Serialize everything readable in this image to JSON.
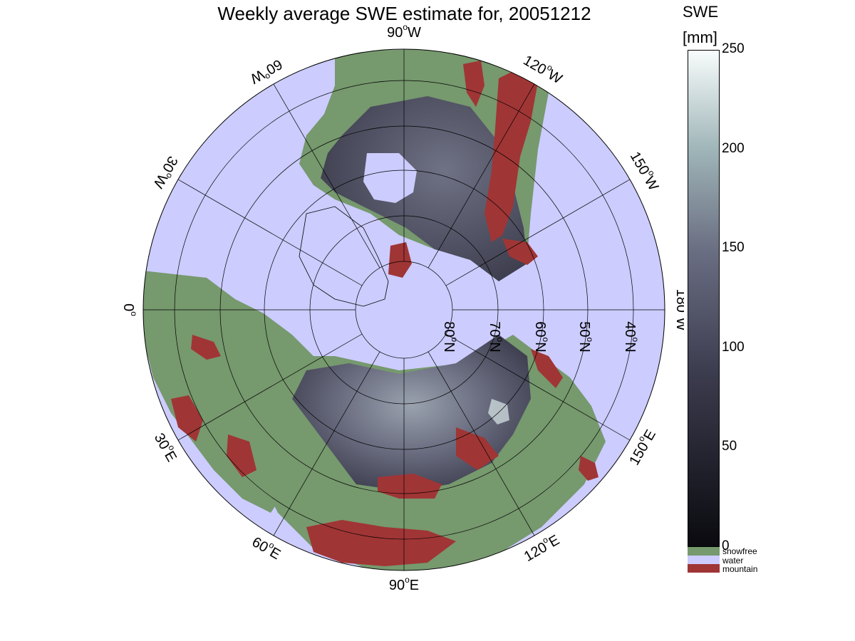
{
  "title": "Weekly average SWE estimate for, 20051212",
  "colorbar": {
    "title_line1": "SWE",
    "title_line2": "[mm]",
    "ticks": [
      "250",
      "200",
      "150",
      "100",
      "50",
      "0"
    ],
    "categories": [
      {
        "label": "snowfree",
        "color": "#76996e"
      },
      {
        "label": "water",
        "color": "#ccccff"
      },
      {
        "label": "mountain",
        "color": "#a03535"
      }
    ]
  },
  "map": {
    "projection": "north polar stereographic",
    "longitude_labels": [
      {
        "deg": "90",
        "dir": "W"
      },
      {
        "deg": "120",
        "dir": "W"
      },
      {
        "deg": "150",
        "dir": "W"
      },
      {
        "deg": "180",
        "dir": "W"
      },
      {
        "deg": "150",
        "dir": "E"
      },
      {
        "deg": "120",
        "dir": "E"
      },
      {
        "deg": "90",
        "dir": "E"
      },
      {
        "deg": "60",
        "dir": "E"
      },
      {
        "deg": "30",
        "dir": "E"
      },
      {
        "deg": "0",
        "dir": ""
      },
      {
        "deg": "30",
        "dir": "W"
      },
      {
        "deg": "60",
        "dir": "W"
      }
    ],
    "latitude_labels": [
      {
        "deg": "80",
        "dir": "N"
      },
      {
        "deg": "70",
        "dir": "N"
      },
      {
        "deg": "60",
        "dir": "N"
      },
      {
        "deg": "50",
        "dir": "N"
      },
      {
        "deg": "40",
        "dir": "N"
      }
    ],
    "colors": {
      "water": "#ccccff",
      "snowfree": "#76996e",
      "mountain": "#a03535",
      "swe_low": "#0a0a0f",
      "swe_mid": "#4f4f66",
      "swe_high": "#f8fcfc"
    }
  }
}
